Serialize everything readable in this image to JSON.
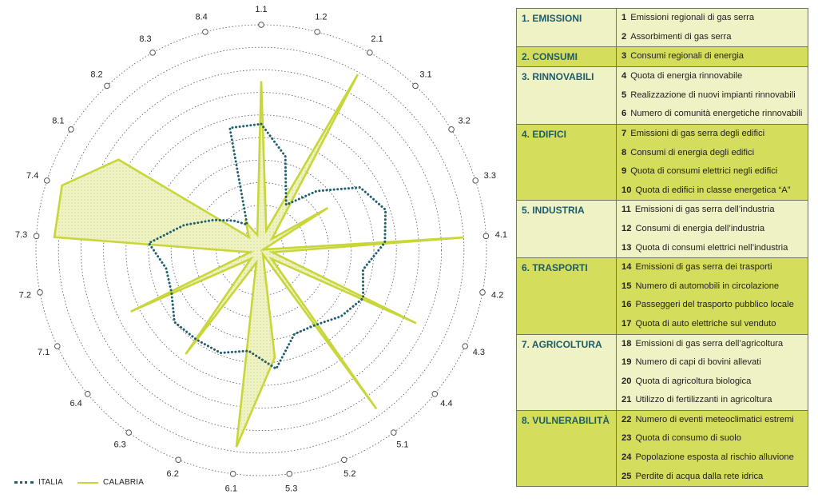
{
  "chart_data": {
    "type": "radar",
    "axes": [
      "1.1",
      "1.2",
      "2.1",
      "3.1",
      "3.2",
      "3.3",
      "4.1",
      "4.2",
      "4.3",
      "4.4",
      "5.1",
      "5.2",
      "5.3",
      "6.1",
      "6.2",
      "6.3",
      "6.4",
      "7.1",
      "7.2",
      "7.3",
      "7.4",
      "8.1",
      "8.2",
      "8.3",
      "8.4"
    ],
    "rings": 10,
    "series": [
      {
        "name": "ITALIA",
        "style": "dotted",
        "color": "#1f5f6e",
        "values": [
          5.6,
          4.3,
          2.3,
          3.6,
          5.2,
          5.8,
          5.5,
          4.6,
          5.0,
          4.6,
          4.1,
          4.0,
          5.3,
          4.5,
          4.9,
          4.9,
          5.0,
          4.4,
          4.3,
          5.0,
          3.6,
          2.5,
          1.8,
          1.3,
          5.6
        ]
      },
      {
        "name": "CALABRIA",
        "style": "solid-fill",
        "color": "#c8d63a",
        "fill": "#eff2c4",
        "values": [
          7.5,
          0.9,
          8.9,
          0.7,
          3.5,
          0.1,
          9.0,
          0.5,
          7.6,
          0.6,
          8.7,
          0.2,
          4.8,
          8.8,
          0.6,
          5.7,
          0.6,
          6.4,
          0.5,
          9.2,
          9.3,
          7.5,
          0.8,
          1.4,
          0.7
        ]
      }
    ]
  },
  "legend": {
    "italia": "ITALIA",
    "calabria": "CALABRIA"
  },
  "table": [
    {
      "category": "1. EMISSIONI",
      "shade": "light",
      "items": [
        {
          "num": "1",
          "text": "Emissioni regionali di gas serra"
        },
        {
          "num": "2",
          "text": "Assorbimenti di gas serra"
        }
      ]
    },
    {
      "category": "2. CONSUMI",
      "shade": "dark",
      "items": [
        {
          "num": "3",
          "text": "Consumi regionali di energia"
        }
      ]
    },
    {
      "category": "3. RINNOVABILI",
      "shade": "light",
      "items": [
        {
          "num": "4",
          "text": "Quota di energia rinnovabile"
        },
        {
          "num": "5",
          "text": "Realizzazione di nuovi impianti rinnovabili"
        },
        {
          "num": "6",
          "text": "Numero di comunità energetiche rinnovabili"
        }
      ]
    },
    {
      "category": "4. EDIFICI",
      "shade": "dark",
      "items": [
        {
          "num": "7",
          "text": "Emissioni di gas serra degli edifici"
        },
        {
          "num": "8",
          "text": "Consumi di energia degli edifici"
        },
        {
          "num": "9",
          "text": "Quota di consumi elettrici negli edifici"
        },
        {
          "num": "10",
          "text": "Quota di edifici in classe energetica “A”"
        }
      ]
    },
    {
      "category": "5. INDUSTRIA",
      "shade": "light",
      "items": [
        {
          "num": "11",
          "text": "Emissioni di gas serra dell’industria"
        },
        {
          "num": "12",
          "text": "Consumi di energia dell’industria"
        },
        {
          "num": "13",
          "text": "Quota di consumi elettrici nell’industria"
        }
      ]
    },
    {
      "category": "6. TRASPORTI",
      "shade": "dark",
      "items": [
        {
          "num": "14",
          "text": "Emissioni di gas serra dei trasporti"
        },
        {
          "num": "15",
          "text": "Numero di automobili in circolazione"
        },
        {
          "num": "16",
          "text": "Passeggeri del trasporto pubblico locale"
        },
        {
          "num": "17",
          "text": "Quota di auto elettriche sul venduto"
        }
      ]
    },
    {
      "category": "7. AGRICOLTURA",
      "shade": "light",
      "items": [
        {
          "num": "18",
          "text": "Emissioni di gas serra dell’agricoltura"
        },
        {
          "num": "19",
          "text": "Numero di capi di bovini allevati"
        },
        {
          "num": "20",
          "text": "Quota di agricoltura biologica"
        },
        {
          "num": "21",
          "text": "Utilizzo di fertilizzanti in agricoltura"
        }
      ]
    },
    {
      "category": "8. VULNERABILITÀ",
      "shade": "dark",
      "items": [
        {
          "num": "22",
          "text": "Numero di eventi meteoclimatici estremi"
        },
        {
          "num": "23",
          "text": "Quota di consumo di suolo"
        },
        {
          "num": "24",
          "text": "Popolazione esposta al rischio alluvione"
        },
        {
          "num": "25",
          "text": "Perdite di acqua dalla rete idrica"
        }
      ]
    }
  ]
}
